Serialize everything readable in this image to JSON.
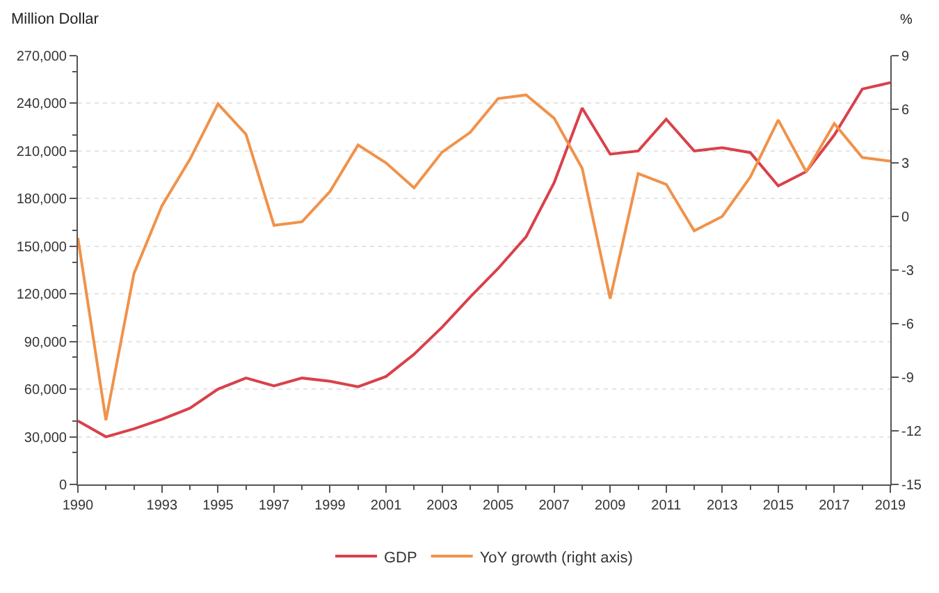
{
  "chart_data": {
    "type": "line",
    "ylabel": "Million Dollar",
    "y2label": "%",
    "x": [
      1990,
      1991,
      1992,
      1993,
      1994,
      1995,
      1996,
      1997,
      1998,
      1999,
      2000,
      2001,
      2002,
      2003,
      2004,
      2005,
      2006,
      2007,
      2008,
      2009,
      2010,
      2011,
      2012,
      2013,
      2014,
      2015,
      2016,
      2017,
      2018,
      2019
    ],
    "series": [
      {
        "name": "GDP",
        "color": "#d9414a",
        "values": [
          40000,
          30000,
          35000,
          41000,
          48000,
          60000,
          67000,
          62000,
          67000,
          65000,
          61500,
          68000,
          82000,
          99000,
          118000,
          136000,
          156000,
          190000,
          237000,
          208000,
          210000,
          230000,
          210000,
          212000,
          209000,
          188000,
          197000,
          220000,
          249000,
          253000
        ]
      },
      {
        "name": "YoY growth (right axis)",
        "color": "#f0924a",
        "axis": "y2",
        "values": [
          -1.2,
          -11.4,
          -3.2,
          0.6,
          3.2,
          6.3,
          4.6,
          -0.5,
          -0.3,
          1.4,
          4.0,
          3.0,
          1.6,
          3.6,
          4.7,
          6.6,
          6.8,
          5.5,
          2.7,
          -4.6,
          2.4,
          1.8,
          -0.8,
          0.0,
          2.2,
          5.4,
          2.5,
          5.2,
          3.3,
          3.1
        ]
      }
    ],
    "xlim": [
      1990,
      2019
    ],
    "xticks": [
      1990,
      1993,
      1995,
      1997,
      1999,
      2001,
      2003,
      2005,
      2007,
      2009,
      2011,
      2013,
      2015,
      2017,
      2019
    ],
    "ylim": [
      0,
      270000
    ],
    "yticks": [
      {
        "value": 0,
        "label": "0"
      },
      {
        "value": 30000,
        "label": "30,000"
      },
      {
        "value": 60000,
        "label": "60,000"
      },
      {
        "value": 90000,
        "label": "90,000"
      },
      {
        "value": 120000,
        "label": "120,000"
      },
      {
        "value": 150000,
        "label": "150,000"
      },
      {
        "value": 180000,
        "label": "180,000"
      },
      {
        "value": 210000,
        "label": "210,000"
      },
      {
        "value": 240000,
        "label": "240,000"
      },
      {
        "value": 270000,
        "label": "270,000"
      }
    ],
    "y2lim": [
      -15,
      9
    ],
    "y2ticks": [
      -15,
      -12,
      -9,
      -6,
      -3,
      0,
      3,
      6,
      9
    ],
    "grid": "y",
    "legend": "bottom",
    "marker": "none",
    "line_style": "solid"
  }
}
